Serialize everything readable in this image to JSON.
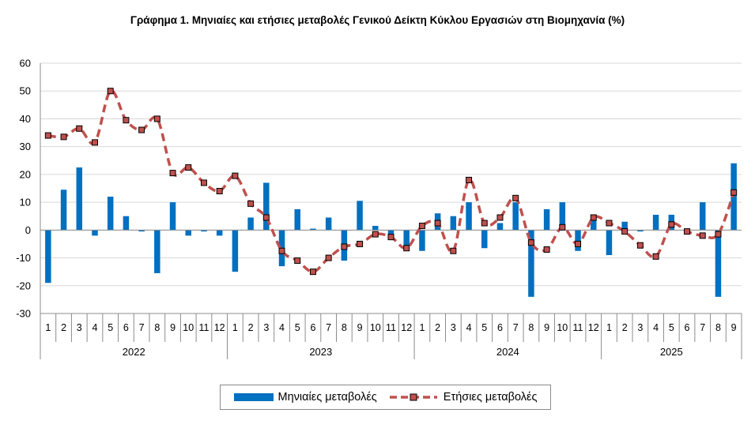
{
  "chart_data": {
    "type": "bar+line",
    "title": "Γράφημα 1. Μηνιαίες και ετήσιες μεταβολές  Γενικού Δείκτη Κύκλου Εργασιών στη Βιομηχανία (%)",
    "ylim": [
      -30,
      60
    ],
    "yticks": [
      60,
      50,
      40,
      30,
      20,
      10,
      0,
      -10,
      -20,
      -30
    ],
    "categories": [
      "1",
      "2",
      "3",
      "4",
      "5",
      "6",
      "7",
      "8",
      "9",
      "10",
      "11",
      "12",
      "1",
      "2",
      "3",
      "4",
      "5",
      "6",
      "7",
      "8",
      "9",
      "10",
      "11",
      "12",
      "1",
      "2",
      "3",
      "4",
      "5",
      "6",
      "7",
      "8",
      "9",
      "10",
      "11",
      "12",
      "1",
      "2",
      "3",
      "4",
      "5",
      "6",
      "7",
      "8",
      "9"
    ],
    "years": [
      {
        "label": "2022",
        "count": 12
      },
      {
        "label": "2023",
        "count": 12
      },
      {
        "label": "2024",
        "count": 12
      },
      {
        "label": "2025",
        "count": 9
      }
    ],
    "grid": true,
    "legend_position": "bottom",
    "series": [
      {
        "name": "Μηνιαίες μεταβολές",
        "type": "bar",
        "color": "#0070c0",
        "values": [
          -19,
          14.5,
          22.5,
          -2,
          12,
          5,
          -0.5,
          -15.5,
          10,
          -2,
          -0.5,
          -2,
          -15,
          4.5,
          17,
          -13,
          7.5,
          0.5,
          4.5,
          -11,
          10.5,
          1.5,
          -2,
          -6,
          -7.5,
          6,
          5,
          10,
          -6.5,
          2.5,
          10,
          -24,
          7.5,
          10,
          -7.5,
          3.5,
          -9,
          3,
          -0.5,
          5.5,
          5.5,
          -1.5,
          10,
          -24,
          24
        ]
      },
      {
        "name": "Ετήσιες μεταβολές",
        "type": "line",
        "color": "#c0504d",
        "values": [
          34,
          33.5,
          36.5,
          31.5,
          50,
          39.5,
          36,
          40,
          20.5,
          22.5,
          17,
          14,
          19.5,
          9.5,
          4.5,
          -7.5,
          -11,
          -15,
          -10,
          -6,
          -5,
          -1.5,
          -2.5,
          -6.5,
          1.5,
          2.5,
          -7.5,
          18,
          2.5,
          4.5,
          11.5,
          -4.5,
          -7,
          1,
          -5,
          4.5,
          2.5,
          -0.5,
          -5.5,
          -9.5,
          2,
          -0.5,
          -2,
          -1.5,
          13.5
        ]
      }
    ]
  },
  "legend": {
    "bar_label": "Μηνιαίες μεταβολές",
    "line_label": "Ετήσιες μεταβολές"
  }
}
